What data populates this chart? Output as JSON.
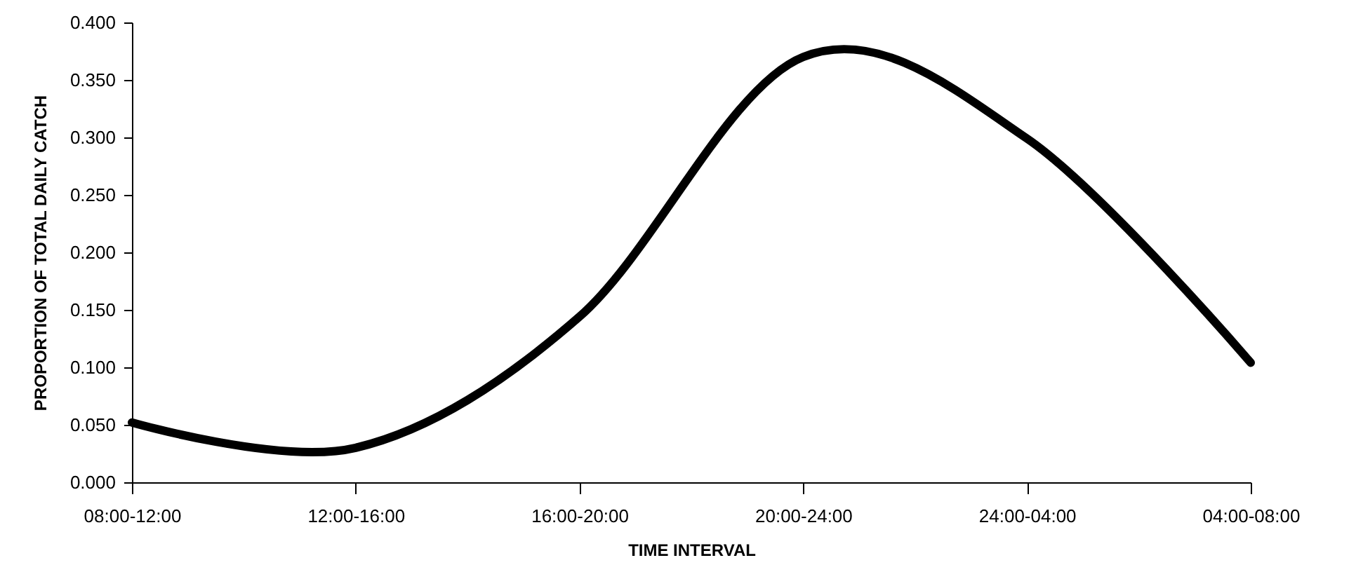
{
  "chart_data": {
    "type": "line",
    "xlabel": "TIME INTERVAL",
    "ylabel": "PROPORTION OF TOTAL DAILY CATCH",
    "categories": [
      "08:00-12:00",
      "12:00-16:00",
      "16:00-20:00",
      "20:00-24:00",
      "24:00-04:00",
      "04:00-08:00"
    ],
    "values": [
      0.052,
      0.03,
      0.144,
      0.37,
      0.299,
      0.104
    ],
    "color": "#000000",
    "ylim": [
      0,
      0.4
    ],
    "yticks": [
      {
        "value": 0,
        "label": "0.000"
      },
      {
        "value": 0.05,
        "label": "0.050"
      },
      {
        "value": 0.1,
        "label": "0.100"
      },
      {
        "value": 0.15,
        "label": "0.150"
      },
      {
        "value": 0.2,
        "label": "0.200"
      },
      {
        "value": 0.25,
        "label": "0.250"
      },
      {
        "value": 0.3,
        "label": "0.300"
      },
      {
        "value": 0.35,
        "label": "0.350"
      },
      {
        "value": 0.4,
        "label": "0.400"
      }
    ],
    "grid": false,
    "marker": "none",
    "line_style": "solid"
  }
}
